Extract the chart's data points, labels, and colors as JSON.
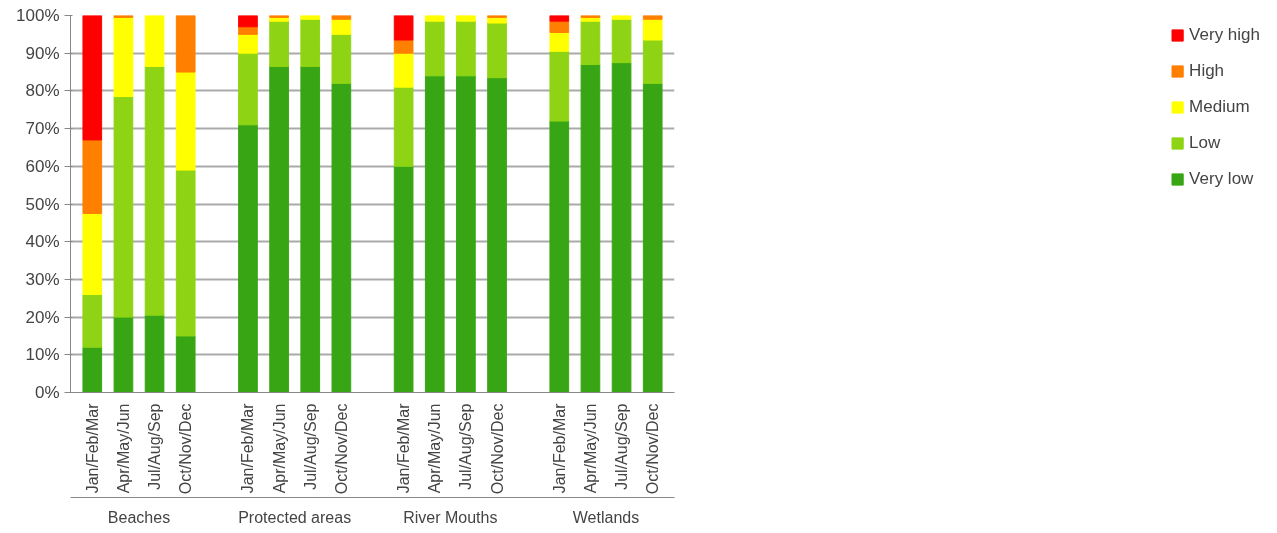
{
  "chart_data": {
    "type": "bar",
    "stacked": true,
    "categories": [
      "Jan/Feb/Mar",
      "Apr/May/Jun",
      "Jul/Aug/Sep",
      "Oct/Nov/Dec",
      null,
      "Jan/Feb/Mar",
      "Apr/May/Jun",
      "Jul/Aug/Sep",
      "Oct/Nov/Dec",
      null,
      "Jan/Feb/Mar",
      "Apr/May/Jun",
      "Jul/Aug/Sep",
      "Oct/Nov/Dec",
      null,
      "Jan/Feb/Mar",
      "Apr/May/Jun",
      "Jul/Aug/Sep",
      "Oct/Nov/Dec"
    ],
    "annotations": [
      "Beaches",
      "Protected areas",
      "River Mouths",
      "Wetlands"
    ],
    "series": [
      {
        "name": "Very low",
        "color": "#38a614",
        "values": [
          12,
          20,
          20.5,
          15,
          null,
          71,
          86.5,
          86.5,
          82,
          null,
          60,
          84,
          84,
          83.5,
          null,
          72,
          87,
          87.5,
          82
        ]
      },
      {
        "name": "Low",
        "color": "#8ed414",
        "values": [
          14,
          58.5,
          66,
          44,
          null,
          19,
          12,
          12.5,
          13,
          null,
          21,
          14.5,
          14.5,
          14.5,
          null,
          18.5,
          11.5,
          11.5,
          11.5
        ]
      },
      {
        "name": "Medium",
        "color": "#ffff00",
        "values": [
          21.5,
          21,
          13.5,
          26,
          null,
          5,
          1,
          1,
          4,
          null,
          9,
          1.5,
          1.5,
          1.5,
          null,
          5,
          1,
          1,
          5.5
        ]
      },
      {
        "name": "High",
        "color": "#ff7f00",
        "values": [
          19.5,
          0.5,
          null,
          15,
          null,
          2,
          0.5,
          null,
          1,
          null,
          3.5,
          null,
          null,
          0.5,
          null,
          3,
          0.5,
          null,
          1
        ]
      },
      {
        "name": "Very high",
        "color": "#ff0000",
        "values": [
          33,
          null,
          null,
          null,
          null,
          3,
          null,
          null,
          null,
          null,
          6.5,
          null,
          null,
          null,
          null,
          1.5,
          null,
          null,
          null
        ]
      }
    ],
    "ylim": [
      0,
      100
    ],
    "yticks": [
      {
        "value": 0,
        "label": "0%"
      },
      {
        "value": 10,
        "label": "10%"
      },
      {
        "value": 20,
        "label": "20%"
      },
      {
        "value": 30,
        "label": "30%"
      },
      {
        "value": 40,
        "label": "40%"
      },
      {
        "value": 50,
        "label": "50%"
      },
      {
        "value": 60,
        "label": "60%"
      },
      {
        "value": 70,
        "label": "70%"
      },
      {
        "value": 80,
        "label": "80%"
      },
      {
        "value": 90,
        "label": "90%"
      },
      {
        "value": 100,
        "label": "100%"
      }
    ],
    "grid": "y",
    "legend": "right"
  }
}
